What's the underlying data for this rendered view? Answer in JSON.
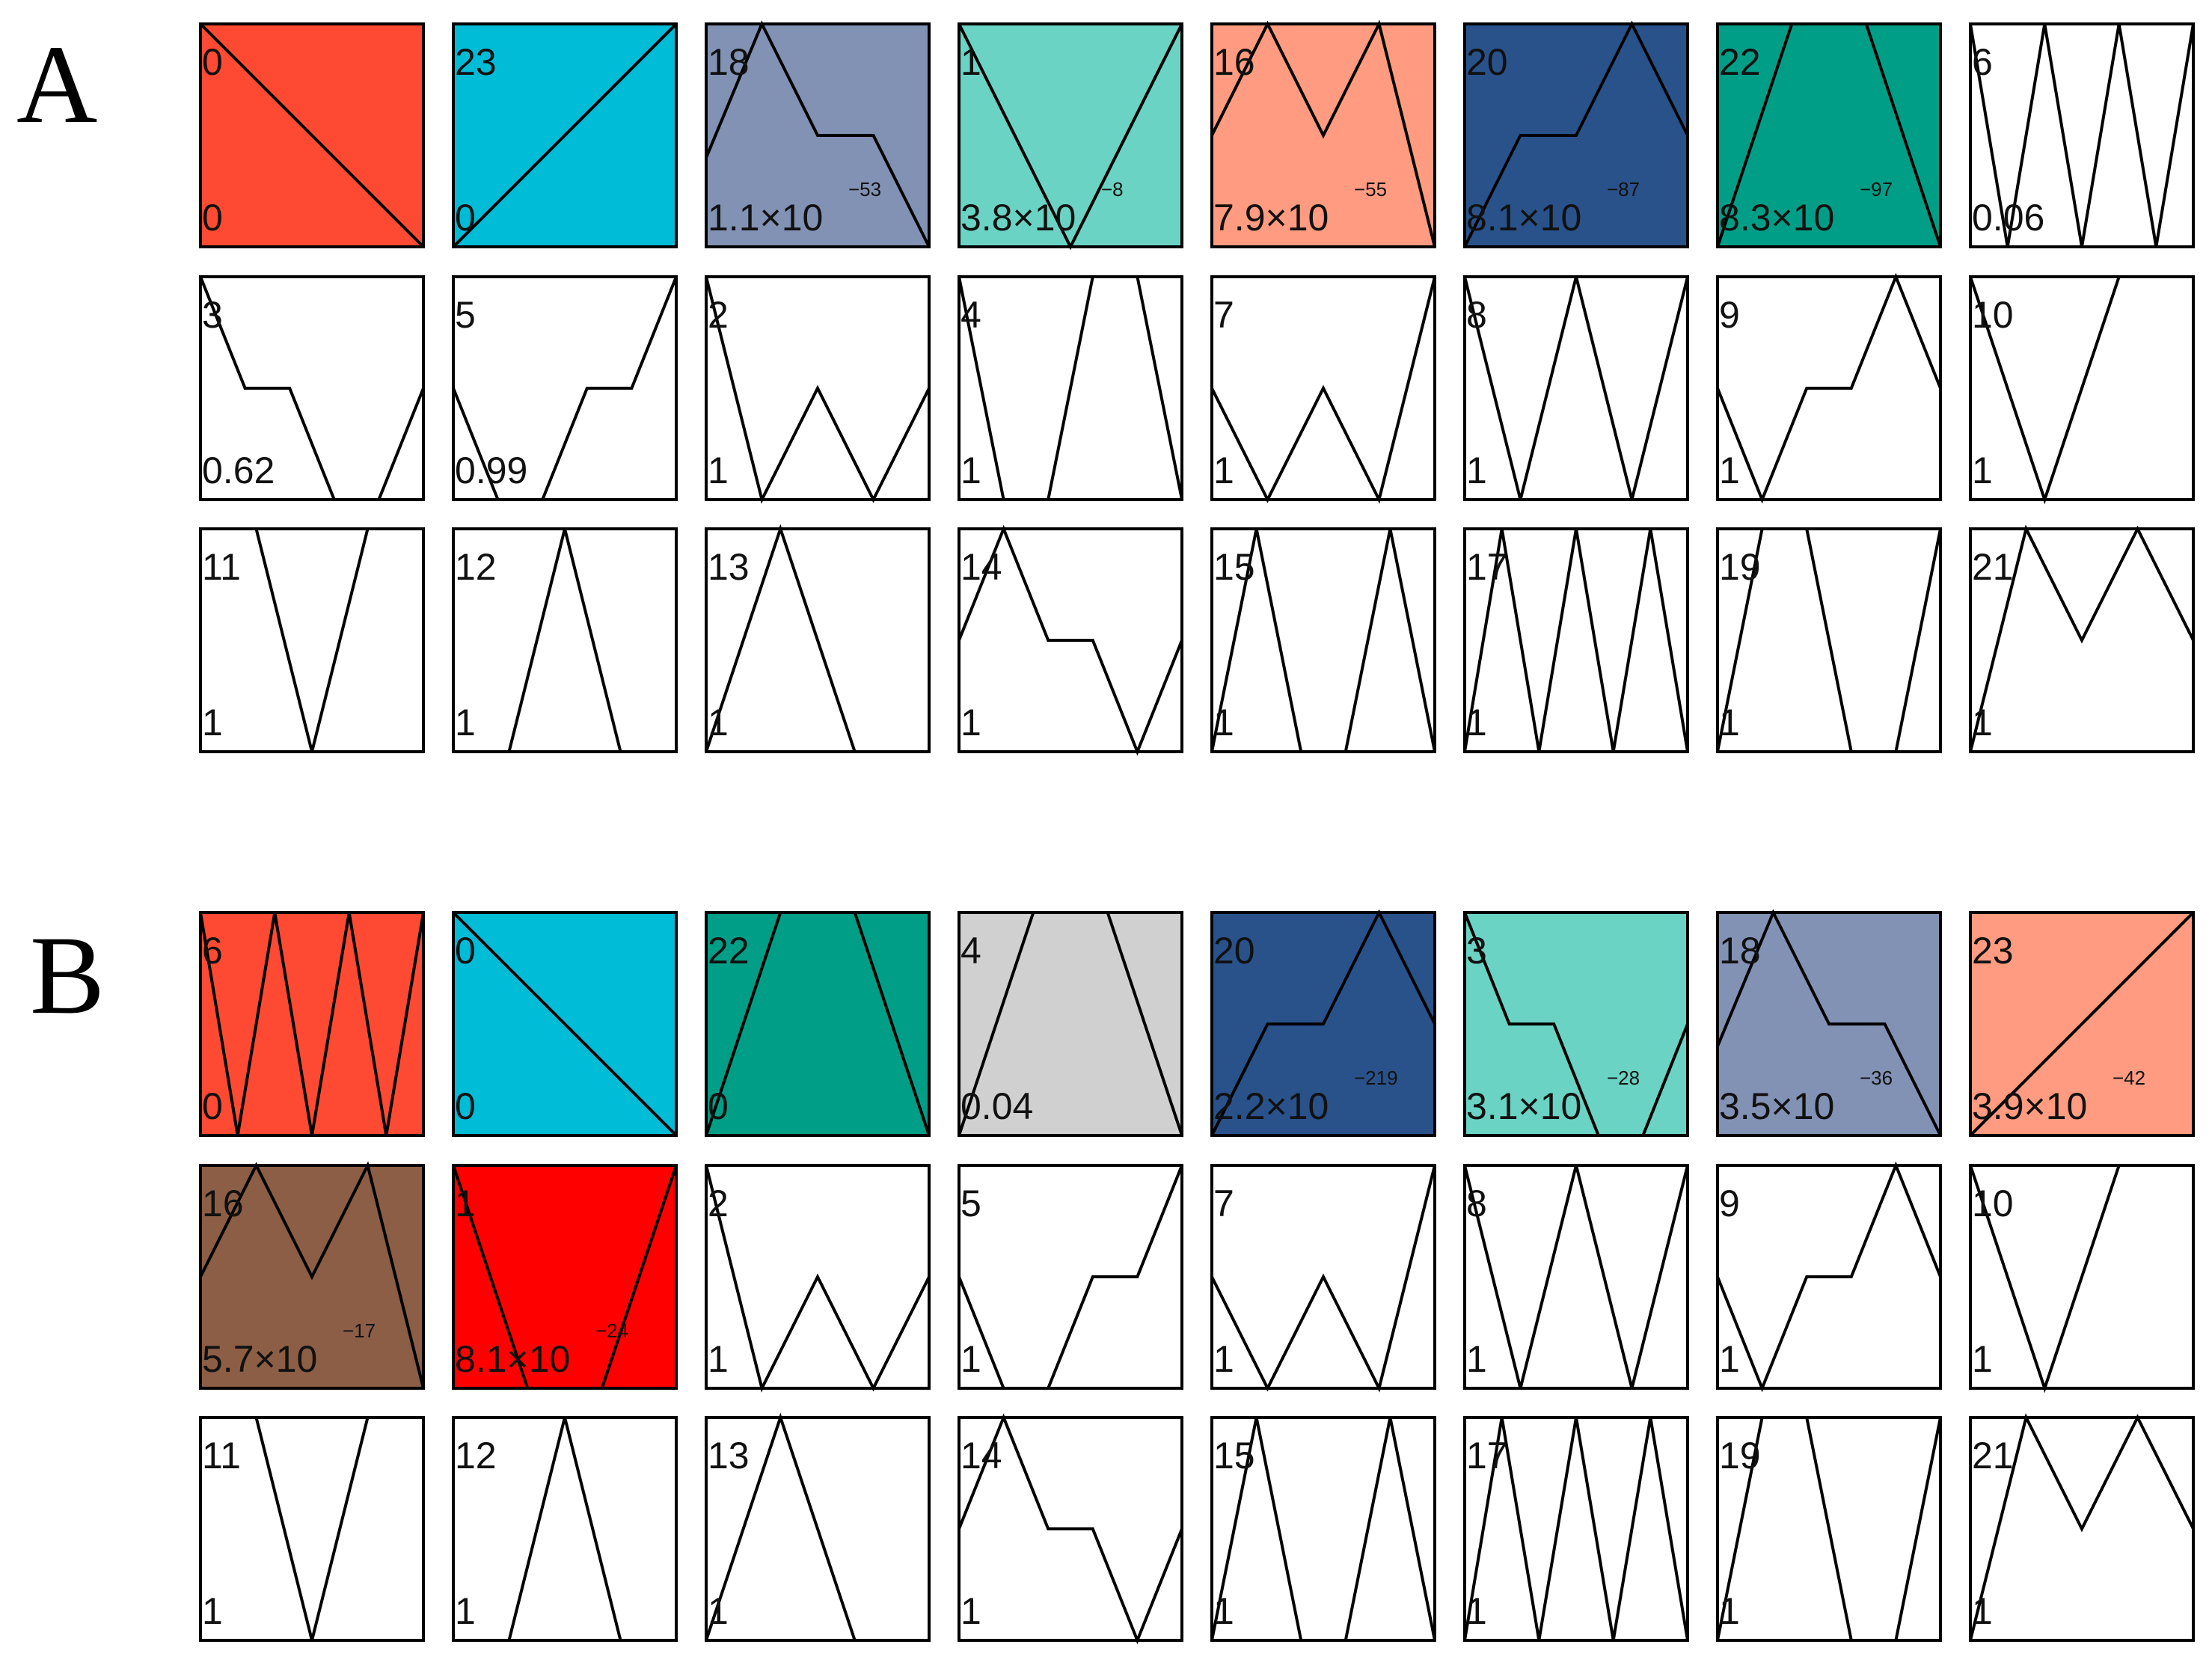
{
  "panels": [
    {
      "letter": "A",
      "rows": [
        [
          {
            "id": "0",
            "p": "0",
            "color": "#FF4A33",
            "shape": [
              0,
              0.5,
              1
            ]
          },
          {
            "id": "23",
            "p": "0",
            "color": "#00BCD6",
            "shape": [
              1,
              0.5,
              0
            ]
          },
          {
            "id": "18",
            "p": "1.1×10",
            "exp": "−53",
            "color": "#8292B4",
            "shape": [
              0.6,
              0,
              0.5,
              0.5,
              1
            ]
          },
          {
            "id": "1",
            "p": "3.8×10",
            "exp": "−8",
            "color": "#6AD3C3",
            "shape": [
              0,
              1,
              0
            ]
          },
          {
            "id": "16",
            "p": "7.9×10",
            "exp": "−55",
            "color": "#FF9B80",
            "shape": [
              0.5,
              0,
              0.5,
              0,
              1
            ]
          },
          {
            "id": "20",
            "p": "8.1×10",
            "exp": "−87",
            "color": "#2A528A",
            "shape": [
              1,
              0.5,
              0.5,
              0,
              0.5
            ]
          },
          {
            "id": "22",
            "p": "8.3×10",
            "exp": "−97",
            "color": "#009E86",
            "shape": [
              1,
              0,
              0,
              1
            ]
          },
          {
            "id": "6",
            "p": "0.06",
            "color": "#FFFFFF",
            "shape": [
              0,
              1,
              0,
              1,
              0,
              1,
              0
            ]
          }
        ],
        [
          {
            "id": "3",
            "p": "0.62",
            "color": "#FFFFFF",
            "shape": [
              0,
              0.5,
              0.5,
              1,
              1,
              0.5
            ]
          },
          {
            "id": "5",
            "p": "0.99",
            "color": "#FFFFFF",
            "shape": [
              0.5,
              1,
              1,
              0.5,
              0.5,
              0
            ]
          },
          {
            "id": "2",
            "p": "1",
            "color": "#FFFFFF",
            "shape": [
              0,
              1,
              0.5,
              1,
              0.5
            ]
          },
          {
            "id": "4",
            "p": "1",
            "color": "#FFFFFF",
            "shape": [
              0,
              1,
              1,
              0,
              0,
              1
            ]
          },
          {
            "id": "7",
            "p": "1",
            "color": "#FFFFFF",
            "shape": [
              0.5,
              1,
              0.5,
              1,
              0
            ]
          },
          {
            "id": "8",
            "p": "1",
            "color": "#FFFFFF",
            "shape": [
              0,
              1,
              0,
              1,
              0
            ]
          },
          {
            "id": "9",
            "p": "1",
            "color": "#FFFFFF",
            "shape": [
              0.5,
              1,
              0.5,
              0.5,
              0,
              0.5
            ]
          },
          {
            "id": "10",
            "p": "1",
            "color": "#FFFFFF",
            "shape": [
              0,
              1,
              0,
              0
            ]
          }
        ],
        [
          {
            "id": "11",
            "p": "1",
            "color": "#FFFFFF",
            "shape": [
              0,
              0,
              1,
              0,
              0
            ]
          },
          {
            "id": "12",
            "p": "1",
            "color": "#FFFFFF",
            "shape": [
              1,
              1,
              0,
              1,
              1
            ]
          },
          {
            "id": "13",
            "p": "1",
            "color": "#FFFFFF",
            "shape": [
              1,
              0,
              1,
              1
            ]
          },
          {
            "id": "14",
            "p": "1",
            "color": "#FFFFFF",
            "shape": [
              0.5,
              0,
              0.5,
              0.5,
              1,
              0.5
            ]
          },
          {
            "id": "15",
            "p": "1",
            "color": "#FFFFFF",
            "shape": [
              1,
              0,
              1,
              1,
              0,
              1
            ]
          },
          {
            "id": "17",
            "p": "1",
            "color": "#FFFFFF",
            "shape": [
              1,
              0,
              1,
              0,
              1,
              0,
              1
            ]
          },
          {
            "id": "19",
            "p": "1",
            "color": "#FFFFFF",
            "shape": [
              1,
              0,
              0,
              1,
              1,
              0
            ]
          },
          {
            "id": "21",
            "p": "1",
            "color": "#FFFFFF",
            "shape": [
              1,
              0,
              0.5,
              0,
              0.5
            ]
          }
        ]
      ]
    },
    {
      "letter": "B",
      "rows": [
        [
          {
            "id": "6",
            "p": "0",
            "color": "#FF4A33",
            "shape": [
              0,
              1,
              0,
              1,
              0,
              1,
              0
            ]
          },
          {
            "id": "0",
            "p": "0",
            "color": "#00BCD6",
            "shape": [
              0,
              0.5,
              1
            ]
          },
          {
            "id": "22",
            "p": "0",
            "color": "#009E86",
            "shape": [
              1,
              0,
              0,
              1
            ]
          },
          {
            "id": "4",
            "p": "0.04",
            "color": "#D0D0D0",
            "shape": [
              1,
              0,
              0,
              1
            ]
          },
          {
            "id": "20",
            "p": "2.2×10",
            "exp": "−219",
            "color": "#2A528A",
            "shape": [
              1,
              0.5,
              0.5,
              0,
              0.5
            ]
          },
          {
            "id": "3",
            "p": "3.1×10",
            "exp": "−28",
            "color": "#6AD3C3",
            "shape": [
              0,
              0.5,
              0.5,
              1,
              1,
              0.5
            ]
          },
          {
            "id": "18",
            "p": "3.5×10",
            "exp": "−36",
            "color": "#8292B4",
            "shape": [
              0.6,
              0,
              0.5,
              0.5,
              1
            ]
          },
          {
            "id": "23",
            "p": "3.9×10",
            "exp": "−42",
            "color": "#FF9B80",
            "shape": [
              1,
              0.5,
              0
            ]
          }
        ],
        [
          {
            "id": "16",
            "p": "5.7×10",
            "exp": "−17",
            "color": "#8B5E45",
            "shape": [
              0.5,
              0,
              0.5,
              0,
              1
            ]
          },
          {
            "id": "1",
            "p": "8.1×10",
            "exp": "−24",
            "color": "#FF0000",
            "shape": [
              0,
              1,
              1,
              0
            ]
          },
          {
            "id": "2",
            "p": "1",
            "color": "#FFFFFF",
            "shape": [
              0,
              1,
              0.5,
              1,
              0.5
            ]
          },
          {
            "id": "5",
            "p": "1",
            "color": "#FFFFFF",
            "shape": [
              0.5,
              1,
              1,
              0.5,
              0.5,
              0
            ]
          },
          {
            "id": "7",
            "p": "1",
            "color": "#FFFFFF",
            "shape": [
              0.5,
              1,
              0.5,
              1,
              0
            ]
          },
          {
            "id": "8",
            "p": "1",
            "color": "#FFFFFF",
            "shape": [
              0,
              1,
              0,
              1,
              0
            ]
          },
          {
            "id": "9",
            "p": "1",
            "color": "#FFFFFF",
            "shape": [
              0.5,
              1,
              0.5,
              0.5,
              0,
              0.5
            ]
          },
          {
            "id": "10",
            "p": "1",
            "color": "#FFFFFF",
            "shape": [
              0,
              1,
              0,
              0
            ]
          }
        ],
        [
          {
            "id": "11",
            "p": "1",
            "color": "#FFFFFF",
            "shape": [
              0,
              0,
              1,
              0,
              0
            ]
          },
          {
            "id": "12",
            "p": "1",
            "color": "#FFFFFF",
            "shape": [
              1,
              1,
              0,
              1,
              1
            ]
          },
          {
            "id": "13",
            "p": "1",
            "color": "#FFFFFF",
            "shape": [
              1,
              0,
              1,
              1
            ]
          },
          {
            "id": "14",
            "p": "1",
            "color": "#FFFFFF",
            "shape": [
              0.5,
              0,
              0.5,
              0.5,
              1,
              0.5
            ]
          },
          {
            "id": "15",
            "p": "1",
            "color": "#FFFFFF",
            "shape": [
              1,
              0,
              1,
              1,
              0,
              1
            ]
          },
          {
            "id": "17",
            "p": "1",
            "color": "#FFFFFF",
            "shape": [
              1,
              0,
              1,
              0,
              1,
              0,
              1
            ]
          },
          {
            "id": "19",
            "p": "1",
            "color": "#FFFFFF",
            "shape": [
              1,
              0,
              0,
              1,
              1,
              0
            ]
          },
          {
            "id": "21",
            "p": "1",
            "color": "#FFFFFF",
            "shape": [
              1,
              0,
              0.5,
              0,
              0.5
            ]
          }
        ]
      ]
    }
  ]
}
